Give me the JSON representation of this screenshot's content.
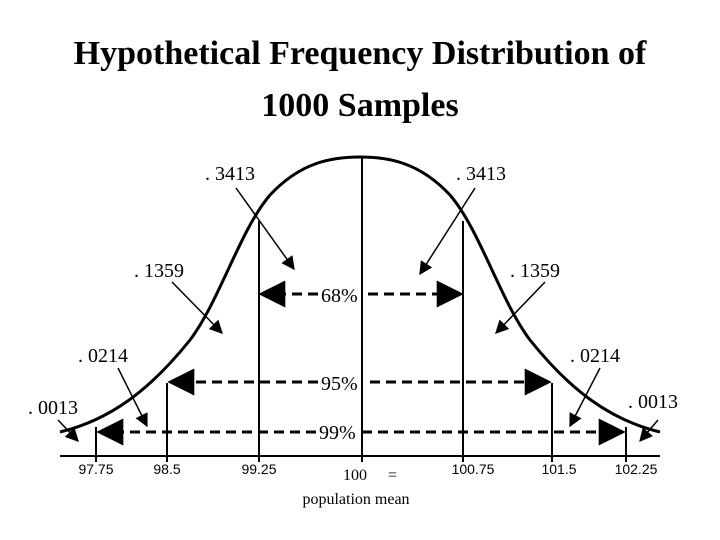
{
  "title": {
    "line1": "Hypothetical Frequency Distribution of",
    "line2": "1000 Samples"
  },
  "regions": {
    "left_3413": ". 3413",
    "right_3413": ". 3413",
    "left_1359": ". 1359",
    "right_1359": ". 1359",
    "left_0214": ". 0214",
    "right_0214": ". 0214",
    "left_0013": ". 0013",
    "right_0013": ". 0013"
  },
  "ranges": {
    "r68": "68%",
    "r95": "95%",
    "r99": "99%"
  },
  "axis": {
    "ticks": [
      "97.75",
      "98.5",
      "99.25",
      "100.75",
      "101.5",
      "102.25"
    ],
    "mean_value": "100",
    "mean_eq": "=",
    "mean_caption": "population mean"
  }
}
